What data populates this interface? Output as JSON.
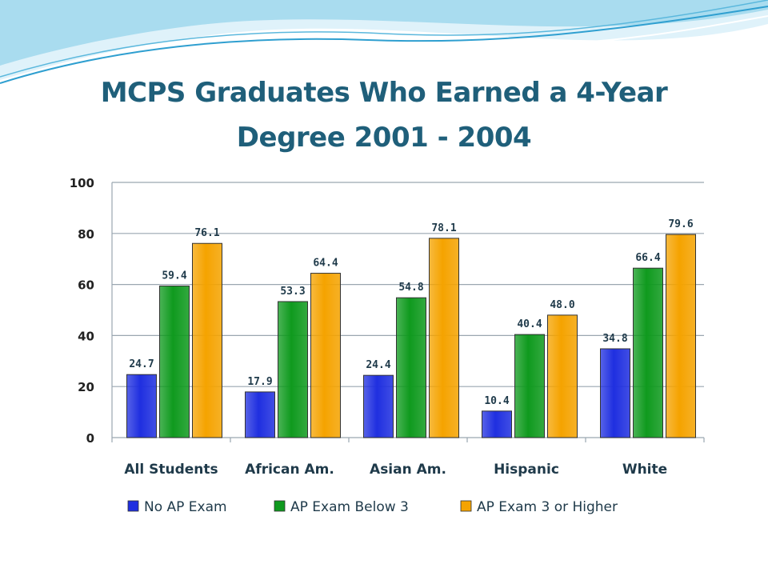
{
  "slide": {
    "title_line1": "MCPS Graduates Who Earned a 4-Year",
    "title_line2": "Degree 2001 - 2004"
  },
  "chart_data": {
    "type": "bar",
    "categories": [
      "All Students",
      "African Am.",
      "Asian Am.",
      "Hispanic",
      "White"
    ],
    "series": [
      {
        "name": "No AP Exam",
        "values": [
          24.7,
          17.9,
          24.4,
          10.4,
          34.8
        ],
        "labels": [
          "24.7",
          "17.9",
          "24.4",
          "10.4",
          "34.8"
        ],
        "color": "#1f2fe0"
      },
      {
        "name": "AP Exam Below 3",
        "values": [
          59.4,
          53.3,
          54.8,
          40.4,
          66.4
        ],
        "labels": [
          "59.4",
          "53.3",
          "54.8",
          "40.4",
          "66.4"
        ],
        "color": "#0f9a1e"
      },
      {
        "name": "AP Exam 3 or Higher",
        "values": [
          76.1,
          64.4,
          78.1,
          48.0,
          79.6
        ],
        "labels": [
          "76.1",
          "64.4",
          "78.1",
          "48.0",
          "79.6"
        ],
        "color": "#f5a300"
      }
    ],
    "yticks": [
      "0",
      "20",
      "40",
      "60",
      "80",
      "100"
    ],
    "ylim": [
      0,
      100
    ],
    "grid": true,
    "legend_position": "bottom"
  },
  "colors": {
    "title": "#1f5f7a",
    "grid": "#9aa6b0",
    "wave_light": "#bfe6f5",
    "wave_mid": "#7fcbe8",
    "wave_dark": "#2f9fd0"
  }
}
